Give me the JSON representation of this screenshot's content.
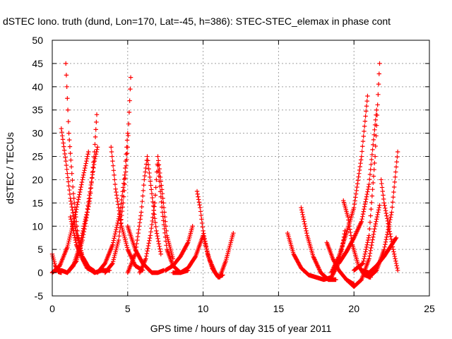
{
  "chart_data": {
    "type": "scatter",
    "title": "dSTEC Iono. truth (dund, Lon=170, Lat=-45, h=386): STEC-STEC_elemax in phase cont",
    "xlabel": "GPS time / hours of day 315 of year 2011",
    "ylabel": "dSTEC  / TECUs",
    "xlim": [
      0,
      25
    ],
    "ylim": [
      -5,
      50
    ],
    "x_ticks": [
      "0",
      "5",
      "10",
      "15",
      "20",
      "25"
    ],
    "y_ticks": [
      "-5",
      "0",
      "5",
      "10",
      "15",
      "20",
      "25",
      "30",
      "35",
      "40",
      "45",
      "50"
    ],
    "grid": true,
    "marker": "plus",
    "color": "#ff0000",
    "series": [
      {
        "x": [
          0.0,
          0.2,
          0.4,
          0.6
        ],
        "y": [
          4.0,
          1.5,
          0.2,
          0.0
        ]
      },
      {
        "x": [
          0.0,
          0.5,
          1.0,
          1.5,
          2.0,
          2.4
        ],
        "y": [
          0.0,
          1.5,
          5.5,
          12.0,
          20.0,
          26.0
        ]
      },
      {
        "x": [
          0.6,
          0.9,
          1.2,
          1.6,
          2.0,
          2.4,
          2.8
        ],
        "y": [
          31.0,
          24.0,
          16.0,
          8.5,
          3.5,
          1.2,
          0.3
        ]
      },
      {
        "x": [
          0.9,
          1.1,
          1.4,
          1.7,
          2.0,
          2.3,
          2.7
        ],
        "y": [
          45.0,
          30.0,
          17.0,
          8.0,
          3.0,
          1.0,
          0.3
        ]
      },
      {
        "x": [
          0.2,
          0.6,
          1.0,
          1.4,
          1.8,
          2.3,
          2.8,
          3.0
        ],
        "y": [
          0.5,
          0.5,
          0.0,
          1.5,
          5.5,
          13.0,
          24.0,
          27.0
        ]
      },
      {
        "x": [
          1.0,
          1.6,
          2.0,
          2.5,
          2.8,
          2.95
        ],
        "y": [
          0.0,
          2.5,
          7.0,
          16.0,
          26.0,
          34.0
        ]
      },
      {
        "x": [
          1.2,
          1.6,
          2.0,
          2.4,
          2.8,
          3.3,
          3.8
        ],
        "y": [
          12.0,
          6.0,
          3.0,
          1.0,
          0.0,
          0.5,
          0.5
        ]
      },
      {
        "x": [
          3.0,
          3.5,
          4.0,
          4.5,
          4.8,
          5.0
        ],
        "y": [
          0.0,
          2.0,
          6.0,
          13.0,
          21.0,
          30.0
        ]
      },
      {
        "x": [
          3.5,
          4.0,
          4.4,
          4.7,
          5.0,
          5.2
        ],
        "y": [
          0.0,
          2.0,
          7.0,
          15.0,
          27.0,
          42.0
        ]
      },
      {
        "x": [
          3.9,
          4.2,
          4.6,
          5.0,
          5.5,
          6.0
        ],
        "y": [
          27.0,
          18.0,
          10.0,
          5.0,
          1.5,
          0.5
        ]
      },
      {
        "x": [
          5.0,
          5.5,
          6.0,
          6.3,
          6.6,
          7.0,
          7.4
        ],
        "y": [
          10.0,
          5.0,
          2.0,
          1.0,
          0.0,
          0.0,
          0.5
        ]
      },
      {
        "x": [
          5.0,
          5.5,
          5.9,
          6.1,
          6.3,
          6.6,
          6.9,
          7.2
        ],
        "y": [
          0.0,
          4.0,
          13.0,
          20.0,
          25.0,
          17.0,
          9.0,
          4.0
        ]
      },
      {
        "x": [
          5.8,
          6.2,
          6.5,
          6.8,
          7.0,
          7.3,
          7.6,
          8.0
        ],
        "y": [
          0.0,
          3.0,
          8.0,
          15.0,
          25.0,
          17.0,
          8.0,
          3.0
        ]
      },
      {
        "x": [
          7.0,
          7.3,
          7.6,
          8.0,
          8.5,
          9.0
        ],
        "y": [
          23.0,
          13.0,
          5.0,
          1.5,
          0.0,
          0.5
        ]
      },
      {
        "x": [
          7.5,
          8.0,
          8.5,
          9.0,
          9.3
        ],
        "y": [
          0.5,
          1.5,
          3.5,
          6.5,
          10.0
        ]
      },
      {
        "x": [
          8.0,
          8.5,
          9.0,
          9.5,
          10.0
        ],
        "y": [
          0.0,
          0.0,
          1.0,
          3.5,
          8.0
        ]
      },
      {
        "x": [
          9.6,
          9.8,
          10.0,
          10.3,
          10.6,
          11.0,
          11.3
        ],
        "y": [
          17.5,
          14.0,
          9.0,
          4.0,
          1.0,
          -1.0,
          -0.5
        ]
      },
      {
        "x": [
          10.0,
          10.4,
          10.8,
          11.1,
          11.5,
          12.0
        ],
        "y": [
          8.0,
          3.0,
          0.0,
          -1.0,
          2.5,
          8.5
        ]
      },
      {
        "x": [
          15.6,
          16.0,
          16.5,
          17.0,
          17.5
        ],
        "y": [
          8.5,
          4.0,
          1.0,
          -0.5,
          -1.0
        ]
      },
      {
        "x": [
          16.5,
          16.9,
          17.3,
          17.8,
          18.3,
          18.8
        ],
        "y": [
          14.0,
          8.0,
          3.5,
          0.0,
          -1.5,
          -1.5
        ]
      },
      {
        "x": [
          17.5,
          18.0,
          18.5,
          18.9,
          19.2,
          19.4
        ],
        "y": [
          -1.0,
          -1.5,
          -1.0,
          1.5,
          5.0,
          9.0
        ]
      },
      {
        "x": [
          18.2,
          18.6,
          19.0,
          19.5,
          20.0
        ],
        "y": [
          6.5,
          3.0,
          0.5,
          -1.5,
          -2.5
        ]
      },
      {
        "x": [
          18.5,
          19.0,
          19.5,
          20.0,
          20.5,
          20.9
        ],
        "y": [
          0.0,
          3.5,
          8.5,
          14.0,
          25.0,
          38.0
        ]
      },
      {
        "x": [
          19.3,
          19.6,
          19.9,
          20.3,
          20.7,
          21.1
        ],
        "y": [
          15.5,
          12.0,
          6.0,
          1.5,
          -0.5,
          -1.0
        ]
      },
      {
        "x": [
          19.0,
          19.5,
          20.0,
          20.5,
          21.0,
          21.5
        ],
        "y": [
          2.0,
          4.5,
          7.5,
          11.0,
          19.0,
          35.0
        ]
      },
      {
        "x": [
          19.5,
          20.0,
          20.5,
          21.0,
          21.4,
          21.7
        ],
        "y": [
          -1.5,
          -3.0,
          -1.5,
          3.0,
          10.0,
          14.5
        ]
      },
      {
        "x": [
          20.0,
          20.6,
          21.0,
          21.4,
          21.7
        ],
        "y": [
          0.5,
          2.0,
          8.0,
          25.0,
          45.0
        ]
      },
      {
        "x": [
          20.5,
          21.0,
          21.5,
          22.0,
          22.5,
          22.8
        ],
        "y": [
          0.5,
          0.0,
          1.5,
          3.5,
          6.0,
          7.5
        ]
      },
      {
        "x": [
          21.0,
          21.5,
          22.0,
          22.5,
          22.9
        ],
        "y": [
          -1.0,
          0.5,
          5.0,
          13.0,
          26.0
        ]
      },
      {
        "x": [
          21.8,
          22.0,
          22.3,
          22.6,
          22.9
        ],
        "y": [
          20.0,
          15.0,
          10.0,
          5.0,
          0.5
        ]
      }
    ]
  }
}
